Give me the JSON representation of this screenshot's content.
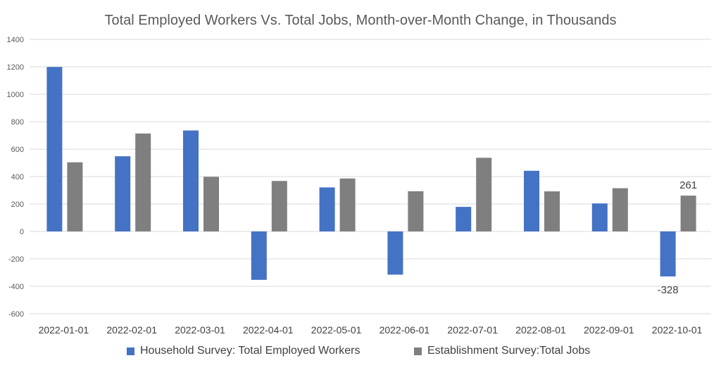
{
  "chart_data": {
    "type": "bar",
    "title": "Total Employed Workers Vs. Total Jobs, Month-over-Month Change, in Thousands",
    "xlabel": "",
    "ylabel": "",
    "categories": [
      "2022-01-01",
      "2022-02-01",
      "2022-03-01",
      "2022-04-01",
      "2022-05-01",
      "2022-06-01",
      "2022-07-01",
      "2022-08-01",
      "2022-09-01",
      "2022-10-01"
    ],
    "series": [
      {
        "name": "Household Survey: Total Employed Workers",
        "color": "#4472C4",
        "values": [
          1199,
          548,
          736,
          -353,
          321,
          -315,
          179,
          442,
          204,
          -328
        ]
      },
      {
        "name": "Establishment Survey:Total Jobs",
        "color": "#7F7F7F",
        "values": [
          504,
          714,
          398,
          368,
          386,
          293,
          537,
          292,
          315,
          261
        ]
      }
    ],
    "ylim": [
      -600,
      1400
    ],
    "yticks": [
      "-600",
      "-400",
      "-200",
      "0",
      "200",
      "400",
      "600",
      "800",
      "1000",
      "1200",
      "1400"
    ],
    "grid": true,
    "legend_position": "bottom",
    "data_labels": [
      {
        "series": 0,
        "index": 9,
        "text": "-328"
      },
      {
        "series": 1,
        "index": 9,
        "text": "261"
      }
    ]
  }
}
